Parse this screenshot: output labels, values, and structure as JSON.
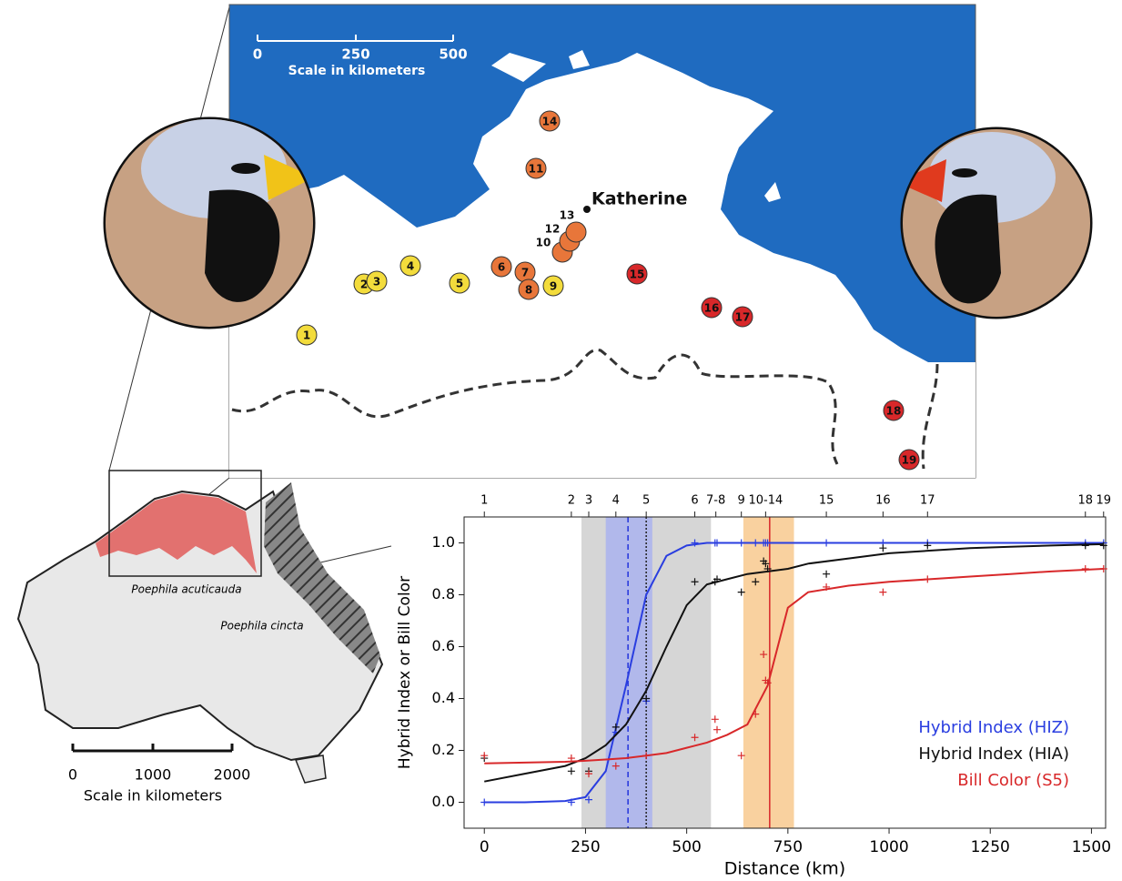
{
  "map": {
    "scale_ticks": [
      "0",
      "250",
      "500"
    ],
    "scale_label": "Scale in kilometers",
    "city": "Katherine",
    "sites": [
      {
        "label": "1",
        "color": "#f3dc3c"
      },
      {
        "label": "2",
        "color": "#f3dc3c"
      },
      {
        "label": "3",
        "color": "#f3dc3c"
      },
      {
        "label": "4",
        "color": "#f3dc3c"
      },
      {
        "label": "5",
        "color": "#f3dc3c"
      },
      {
        "label": "6",
        "color": "#e8763a"
      },
      {
        "label": "7",
        "color": "#e8763a"
      },
      {
        "label": "8",
        "color": "#e8763a"
      },
      {
        "label": "9",
        "color": "#f3dc3c"
      },
      {
        "label": "10",
        "color": "#e8763a"
      },
      {
        "label": "11",
        "color": "#e8763a"
      },
      {
        "label": "12",
        "color": "#e8763a"
      },
      {
        "label": "13",
        "color": "#e8763a"
      },
      {
        "label": "14",
        "color": "#e8763a"
      },
      {
        "label": "15",
        "color": "#d8282a"
      },
      {
        "label": "16",
        "color": "#d8282a"
      },
      {
        "label": "17",
        "color": "#d8282a"
      },
      {
        "label": "18",
        "color": "#d8282a"
      },
      {
        "label": "19",
        "color": "#d8282a"
      }
    ]
  },
  "inset": {
    "species_a": "Poephila acuticauda",
    "species_b": "Poephila cincta",
    "scale_ticks": [
      "0",
      "1000",
      "2000"
    ],
    "scale_label": "Scale in kilometers"
  },
  "chart_data": {
    "type": "line",
    "x_label": "Distance (km)",
    "y_label": "Hybrid Index or Bill Color",
    "xlim": [
      -50,
      1535
    ],
    "ylim": [
      -0.1,
      1.1
    ],
    "xticks": [
      0,
      250,
      500,
      750,
      1000,
      1250,
      1500
    ],
    "yticks": [
      {
        "value": 0,
        "label": "0.0"
      },
      {
        "value": 0.2,
        "label": "0.2"
      },
      {
        "value": 0.4,
        "label": "0.4"
      },
      {
        "value": 0.6,
        "label": "0.6"
      },
      {
        "value": 0.8,
        "label": "0.8"
      },
      {
        "value": 1,
        "label": "1.0"
      }
    ],
    "top_ticks": [
      {
        "value": 0,
        "label": "1"
      },
      {
        "value": 215,
        "label": "2"
      },
      {
        "value": 258,
        "label": "3"
      },
      {
        "value": 325,
        "label": "4"
      },
      {
        "value": 400,
        "label": "5"
      },
      {
        "value": 520,
        "label": "6"
      },
      {
        "value": 572,
        "label": "7-8"
      },
      {
        "value": 635,
        "label": "9"
      },
      {
        "value": 695,
        "label": "10-14"
      },
      {
        "value": 845,
        "label": "15"
      },
      {
        "value": 985,
        "label": "16"
      },
      {
        "value": 1095,
        "label": "17"
      },
      {
        "value": 1485,
        "label": "18"
      },
      {
        "value": 1530,
        "label": "19"
      }
    ],
    "bands": [
      {
        "range": [
          240,
          560
        ],
        "color": "#cfcfcf"
      },
      {
        "range": [
          300,
          415
        ],
        "color": "#aab3ee"
      },
      {
        "range": [
          640,
          765
        ],
        "color": "#f8c98e"
      }
    ],
    "centers": [
      {
        "value": 355,
        "color": "#2233dd",
        "dash": "dashed"
      },
      {
        "value": 400,
        "color": "#222222",
        "dash": "dotted"
      },
      {
        "value": 705,
        "color": "#d8282a",
        "dash": "solid"
      }
    ],
    "x": [
      0,
      100,
      200,
      250,
      300,
      350,
      400,
      450,
      500,
      550,
      600,
      650,
      700,
      750,
      800,
      900,
      1000,
      1100,
      1200,
      1300,
      1400,
      1530
    ],
    "sites_x": [
      0,
      215,
      258,
      325,
      400,
      520,
      570,
      575,
      635,
      670,
      690,
      695,
      700,
      845,
      985,
      1095,
      1485,
      1530
    ],
    "series": [
      {
        "name": "Hybrid Index (HIZ)",
        "color": "#2a3ee0",
        "values": [
          0,
          0,
          0.005,
          0.02,
          0.12,
          0.45,
          0.8,
          0.95,
          0.99,
          1,
          1,
          1,
          1,
          1,
          1,
          1,
          1,
          1,
          1,
          1,
          1,
          1
        ],
        "site_values": [
          0,
          0,
          0.01,
          0.27,
          0.39,
          1,
          1,
          1,
          1,
          1,
          1,
          1,
          1,
          1,
          1,
          1,
          1,
          1
        ]
      },
      {
        "name": "Hybrid Index (HIA)",
        "color": "#111111",
        "values": [
          0.08,
          0.11,
          0.14,
          0.17,
          0.22,
          0.3,
          0.43,
          0.6,
          0.76,
          0.84,
          0.86,
          0.88,
          0.89,
          0.9,
          0.92,
          0.94,
          0.96,
          0.97,
          0.98,
          0.985,
          0.99,
          0.995
        ],
        "site_values": [
          0.17,
          0.12,
          0.12,
          0.29,
          0.4,
          0.85,
          0.85,
          0.86,
          0.81,
          0.85,
          0.93,
          0.92,
          0.9,
          0.88,
          0.98,
          0.99,
          0.99,
          0.99
        ]
      },
      {
        "name": "Bill Color (S5)",
        "color": "#d8282a",
        "values": [
          0.15,
          0.153,
          0.156,
          0.16,
          0.165,
          0.17,
          0.18,
          0.19,
          0.21,
          0.23,
          0.26,
          0.3,
          0.45,
          0.75,
          0.81,
          0.835,
          0.85,
          0.86,
          0.87,
          0.88,
          0.89,
          0.9
        ],
        "site_values": [
          0.18,
          0.17,
          0.11,
          0.14,
          0.18,
          0.25,
          0.32,
          0.28,
          0.18,
          0.34,
          0.57,
          0.47,
          0.46,
          0.83,
          0.81,
          0.86,
          0.9,
          0.9
        ]
      }
    ]
  }
}
